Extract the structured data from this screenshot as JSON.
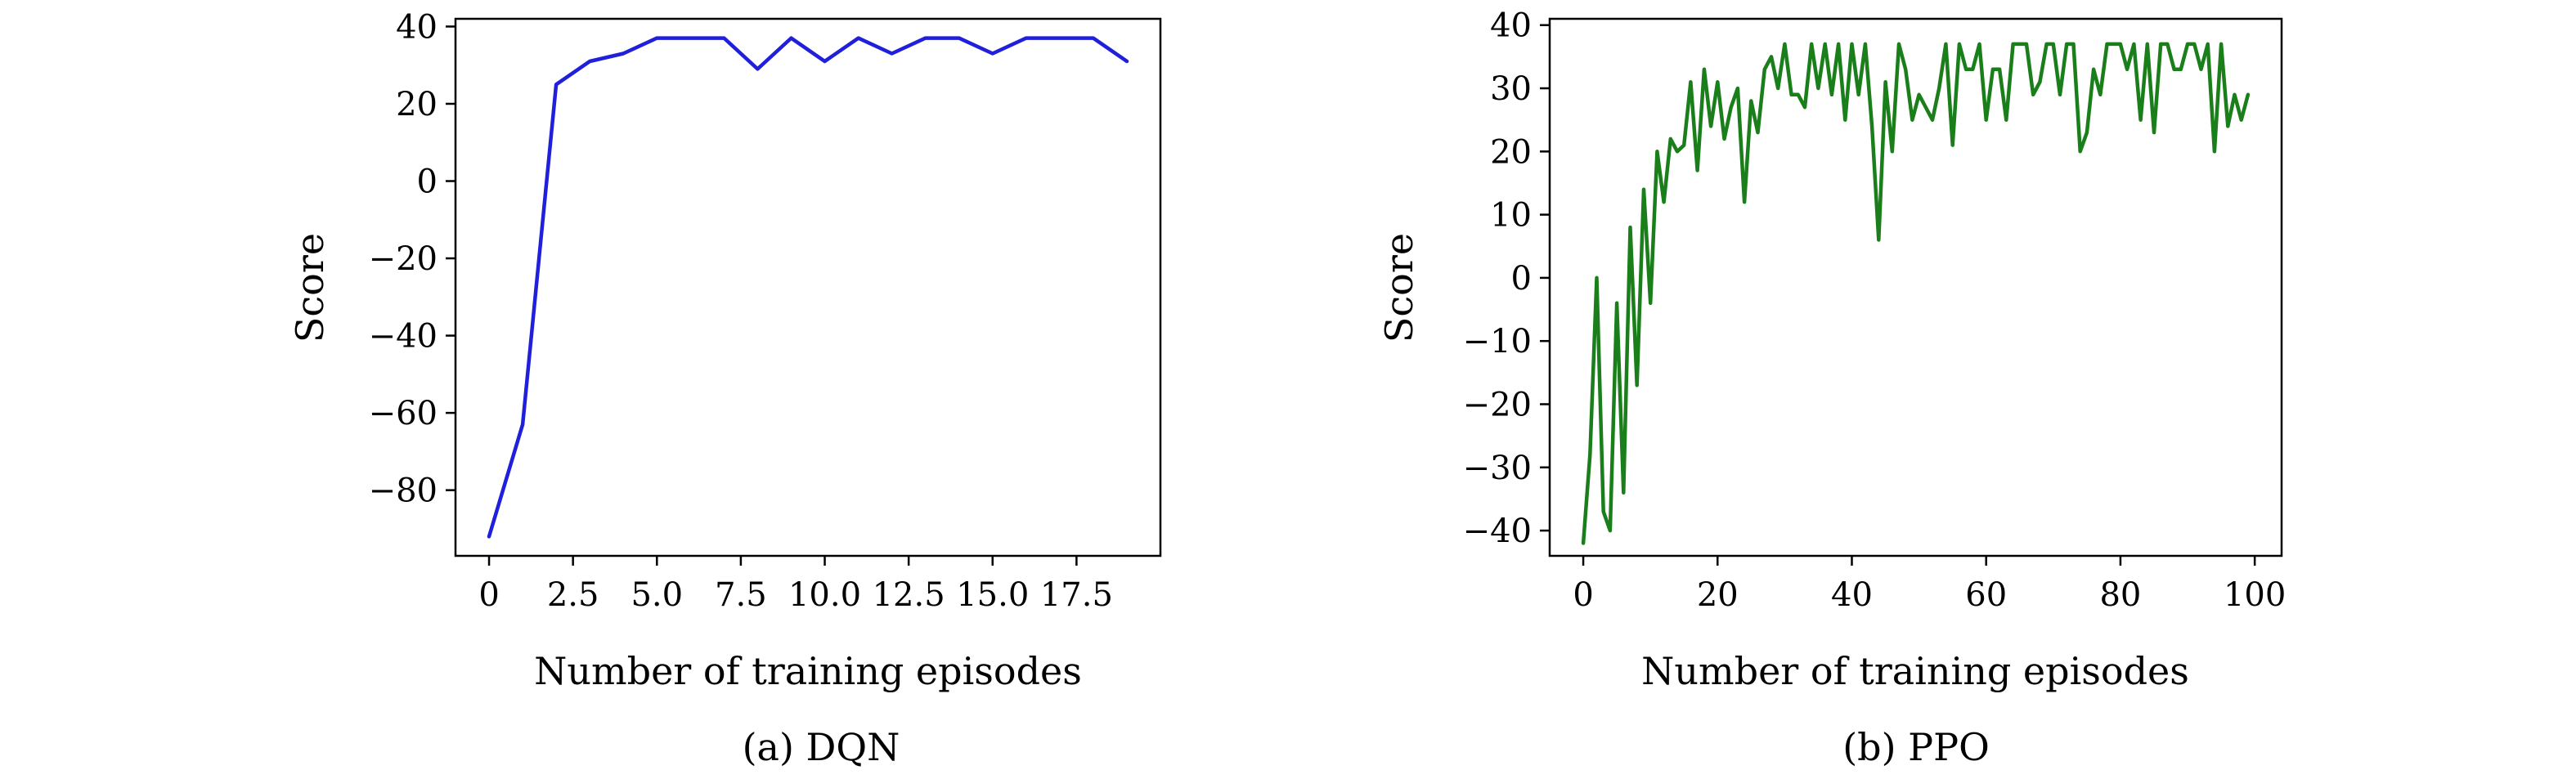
{
  "chart_data": [
    {
      "type": "line",
      "caption": "(a) DQN",
      "xlabel": "Number of training episodes",
      "ylabel": "Score",
      "xlim": [
        -1.0,
        20.0
      ],
      "ylim": [
        -97,
        42
      ],
      "xticks": [
        0,
        2.5,
        5.0,
        7.5,
        10.0,
        12.5,
        15.0,
        17.5
      ],
      "xtick_labels": [
        "0",
        "2.5",
        "5.0",
        "7.5",
        "10.0",
        "12.5",
        "15.0",
        "17.5"
      ],
      "yticks": [
        -80,
        -60,
        -40,
        -20,
        0,
        20,
        40
      ],
      "ytick_labels": [
        "−80",
        "−60",
        "−40",
        "−20",
        "0",
        "20",
        "40"
      ],
      "color": "#1f1fdc",
      "series": [
        {
          "x": [
            0,
            1,
            2,
            3,
            4,
            5,
            6,
            7,
            8,
            9,
            10,
            11,
            12,
            13,
            14,
            15,
            16,
            17,
            18,
            19
          ],
          "y": [
            -92,
            -63,
            25,
            31,
            33,
            37,
            37,
            37,
            29,
            37,
            31,
            37,
            33,
            37,
            37,
            33,
            37,
            37,
            37,
            31
          ]
        }
      ]
    },
    {
      "type": "line",
      "caption": "(b) PPO",
      "xlabel": "Number of training episodes",
      "ylabel": "Score",
      "xlim": [
        -5,
        104
      ],
      "ylim": [
        -44,
        41
      ],
      "xticks": [
        0,
        20,
        40,
        60,
        80,
        100
      ],
      "xtick_labels": [
        "0",
        "20",
        "40",
        "60",
        "80",
        "100"
      ],
      "yticks": [
        -40,
        -30,
        -20,
        -10,
        0,
        10,
        20,
        30,
        40
      ],
      "ytick_labels": [
        "−40",
        "−30",
        "−20",
        "−10",
        "0",
        "10",
        "20",
        "30",
        "40"
      ],
      "color": "#1a7f1a",
      "series": [
        {
          "x": [
            0,
            1,
            2,
            3,
            4,
            5,
            6,
            7,
            8,
            9,
            10,
            11,
            12,
            13,
            14,
            15,
            16,
            17,
            18,
            19,
            20,
            21,
            22,
            23,
            24,
            25,
            26,
            27,
            28,
            29,
            30,
            31,
            32,
            33,
            34,
            35,
            36,
            37,
            38,
            39,
            40,
            41,
            42,
            43,
            44,
            45,
            46,
            47,
            48,
            49,
            50,
            51,
            52,
            53,
            54,
            55,
            56,
            57,
            58,
            59,
            60,
            61,
            62,
            63,
            64,
            65,
            66,
            67,
            68,
            69,
            70,
            71,
            72,
            73,
            74,
            75,
            76,
            77,
            78,
            79,
            80,
            81,
            82,
            83,
            84,
            85,
            86,
            87,
            88,
            89,
            90,
            91,
            92,
            93,
            94,
            95,
            96,
            97,
            98,
            99
          ],
          "y": [
            -42,
            -28,
            0,
            -37,
            -40,
            -4,
            -34,
            8,
            -17,
            14,
            -4,
            20,
            12,
            22,
            20,
            21,
            31,
            17,
            33,
            24,
            31,
            22,
            27,
            30,
            12,
            28,
            23,
            33,
            35,
            30,
            37,
            29,
            29,
            27,
            37,
            30,
            37,
            29,
            37,
            25,
            37,
            29,
            37,
            24,
            6,
            31,
            20,
            37,
            33,
            25,
            29,
            27,
            25,
            30,
            37,
            21,
            37,
            33,
            33,
            37,
            25,
            33,
            33,
            25,
            37,
            37,
            37,
            29,
            31,
            37,
            37,
            29,
            37,
            37,
            20,
            23,
            33,
            29,
            37,
            37,
            37,
            33,
            37,
            25,
            37,
            23,
            37,
            37,
            33,
            33,
            37,
            37,
            33,
            37,
            20,
            37,
            24,
            29,
            25,
            29
          ]
        }
      ]
    }
  ]
}
